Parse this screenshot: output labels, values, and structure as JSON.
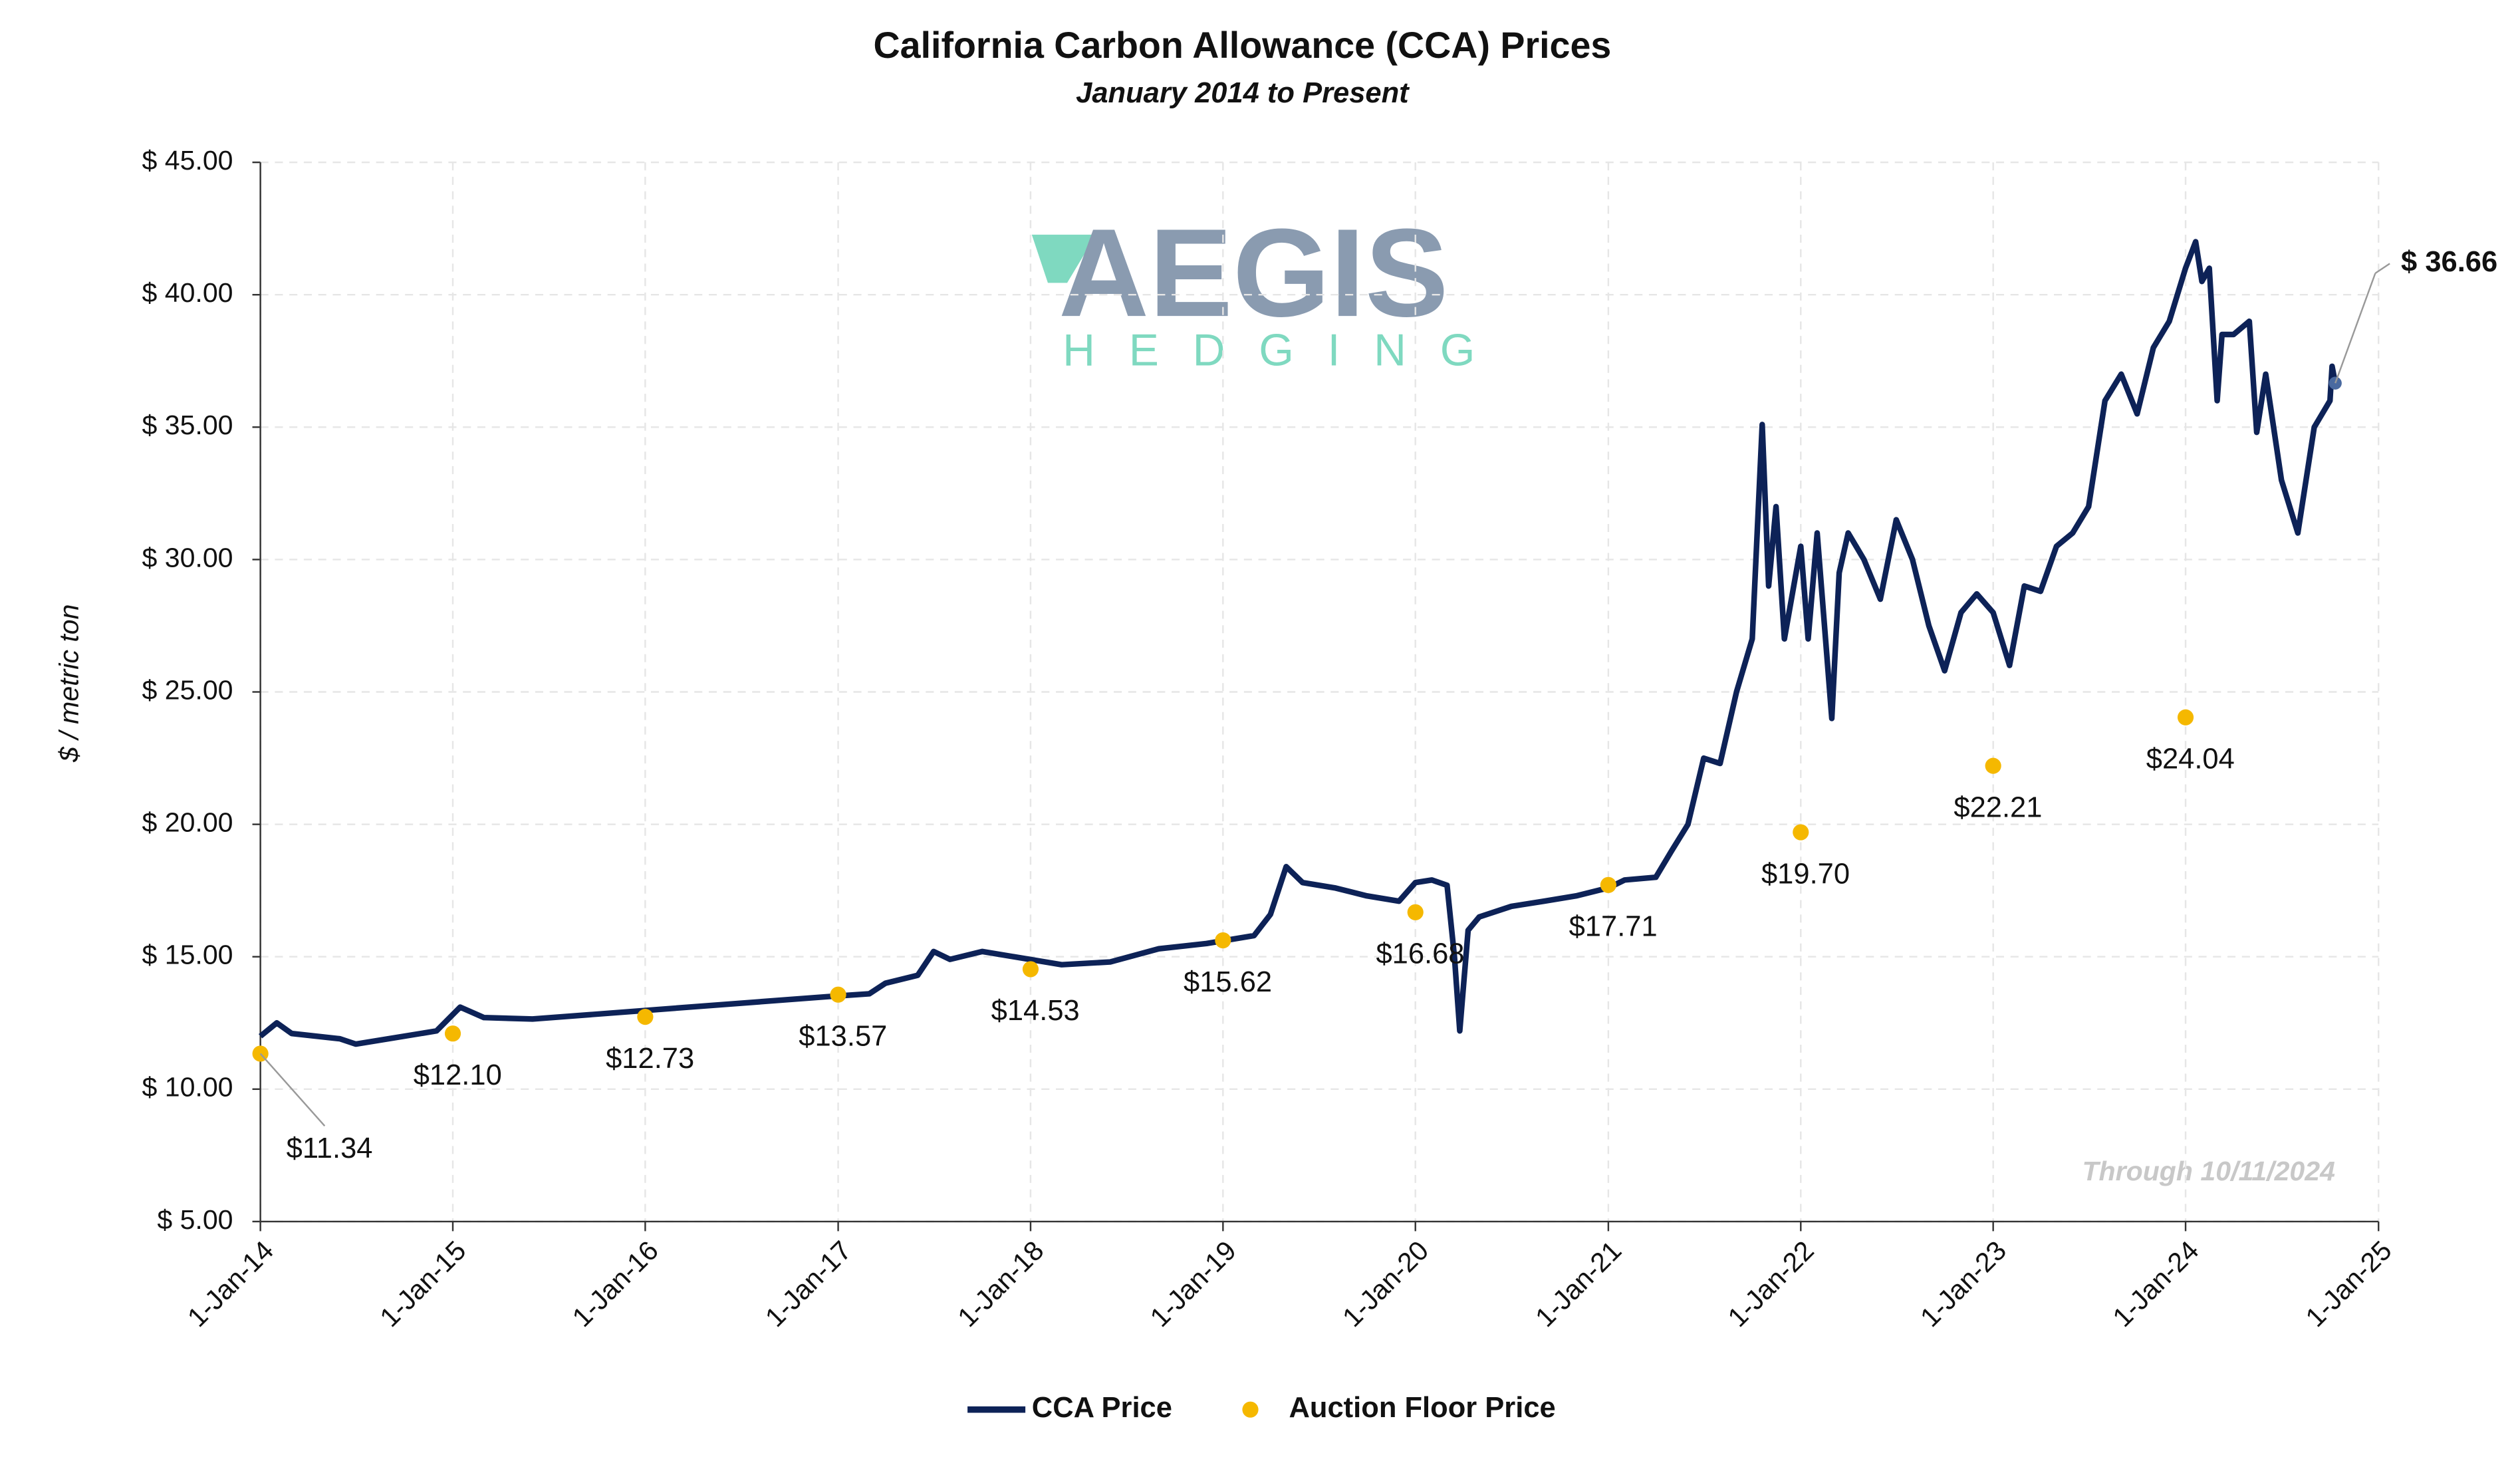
{
  "chart_data": {
    "type": "line",
    "title": "California Carbon Allowance (CCA) Prices",
    "subtitle": "January 2014 to Present",
    "y_label": "$ / metric ton",
    "watermark": [
      "AEGIS",
      "HEDGING"
    ],
    "annotation": "Through 10/11/2024",
    "end_label": {
      "value": 36.66,
      "label": "$ 36.66"
    },
    "xlim": [
      "2014-01-01",
      "2025-01-01"
    ],
    "xticks": [
      {
        "value": "2014-01-01",
        "label": "1-Jan-14"
      },
      {
        "value": "2015-01-01",
        "label": "1-Jan-15"
      },
      {
        "value": "2016-01-01",
        "label": "1-Jan-16"
      },
      {
        "value": "2017-01-01",
        "label": "1-Jan-17"
      },
      {
        "value": "2018-01-01",
        "label": "1-Jan-18"
      },
      {
        "value": "2019-01-01",
        "label": "1-Jan-19"
      },
      {
        "value": "2020-01-01",
        "label": "1-Jan-20"
      },
      {
        "value": "2021-01-01",
        "label": "1-Jan-21"
      },
      {
        "value": "2022-01-01",
        "label": "1-Jan-22"
      },
      {
        "value": "2023-01-01",
        "label": "1-Jan-23"
      },
      {
        "value": "2024-01-01",
        "label": "1-Jan-24"
      },
      {
        "value": "2025-01-01",
        "label": "1-Jan-25"
      }
    ],
    "ylim": [
      5,
      45
    ],
    "yticks": [
      {
        "value": 5,
        "label": "$ 5.00"
      },
      {
        "value": 10,
        "label": "$ 10.00"
      },
      {
        "value": 15,
        "label": "$ 15.00"
      },
      {
        "value": 20,
        "label": "$ 20.00"
      },
      {
        "value": 25,
        "label": "$ 25.00"
      },
      {
        "value": 30,
        "label": "$ 30.00"
      },
      {
        "value": 35,
        "label": "$ 35.00"
      },
      {
        "value": 40,
        "label": "$ 40.00"
      },
      {
        "value": 45,
        "label": "$ 45.00"
      }
    ],
    "grid": true,
    "series": [
      {
        "name": "CCA Price",
        "color": "#0d2257",
        "kind": "line",
        "x": [
          "2014-01-01",
          "2014-02-01",
          "2014-03-01",
          "2014-06-01",
          "2014-07-01",
          "2014-09-01",
          "2014-12-01",
          "2015-01-15",
          "2015-03-01",
          "2015-06-01",
          "2016-12-15",
          "2017-03-01",
          "2017-04-01",
          "2017-06-01",
          "2017-07-01",
          "2017-08-01",
          "2017-10-01",
          "2017-12-01",
          "2018-03-01",
          "2018-06-01",
          "2018-09-01",
          "2018-12-01",
          "2019-03-01",
          "2019-04-01",
          "2019-05-01",
          "2019-06-01",
          "2019-08-01",
          "2019-10-01",
          "2019-12-01",
          "2020-01-01",
          "2020-02-01",
          "2020-03-01",
          "2020-03-15",
          "2020-03-25",
          "2020-04-10",
          "2020-05-01",
          "2020-07-01",
          "2020-09-01",
          "2020-11-01",
          "2021-01-01",
          "2021-02-01",
          "2021-04-01",
          "2021-05-01",
          "2021-06-01",
          "2021-07-01",
          "2021-08-01",
          "2021-09-01",
          "2021-10-01",
          "2021-10-20",
          "2021-11-01",
          "2021-11-15",
          "2021-12-01",
          "2022-01-01",
          "2022-01-15",
          "2022-02-01",
          "2022-03-01",
          "2022-03-15",
          "2022-04-01",
          "2022-05-01",
          "2022-06-01",
          "2022-07-01",
          "2022-08-01",
          "2022-09-01",
          "2022-10-01",
          "2022-11-01",
          "2022-12-01",
          "2023-01-01",
          "2023-02-01",
          "2023-03-01",
          "2023-04-01",
          "2023-05-01",
          "2023-06-01",
          "2023-07-01",
          "2023-08-01",
          "2023-09-01",
          "2023-10-01",
          "2023-11-01",
          "2023-12-01",
          "2024-01-01",
          "2024-01-20",
          "2024-02-01",
          "2024-02-15",
          "2024-03-01",
          "2024-03-10",
          "2024-04-01",
          "2024-05-01",
          "2024-05-15",
          "2024-06-01",
          "2024-07-01",
          "2024-08-01",
          "2024-09-01",
          "2024-10-01",
          "2024-10-05",
          "2024-10-11"
        ],
        "values": [
          12.0,
          12.5,
          12.1,
          11.9,
          11.7,
          11.9,
          12.2,
          13.1,
          12.7,
          12.65,
          13.5,
          13.6,
          14.0,
          14.3,
          15.2,
          14.9,
          15.2,
          15.0,
          14.7,
          14.8,
          15.3,
          15.5,
          15.8,
          16.6,
          18.4,
          17.8,
          17.6,
          17.3,
          17.1,
          17.8,
          17.9,
          17.7,
          15.0,
          12.2,
          16.0,
          16.5,
          16.9,
          17.1,
          17.3,
          17.6,
          17.9,
          18.0,
          19.0,
          20.0,
          22.5,
          22.3,
          25.0,
          27.0,
          35.1,
          29.0,
          32.0,
          27.0,
          30.5,
          27.0,
          31.0,
          24.0,
          29.5,
          31.0,
          30.0,
          28.5,
          31.5,
          30.0,
          27.5,
          25.8,
          28.0,
          28.7,
          28.0,
          26.0,
          29.0,
          28.8,
          30.5,
          31.0,
          32.0,
          36.0,
          37.0,
          35.5,
          38.0,
          39.0,
          41.0,
          42.0,
          40.5,
          41.0,
          36.0,
          38.5,
          38.5,
          39.0,
          34.8,
          37.0,
          33.0,
          31.0,
          35.0,
          36.0,
          37.3,
          36.66
        ]
      },
      {
        "name": "Auction Floor Price",
        "color": "#f5b800",
        "kind": "scatter",
        "x": [
          "2014-01-01",
          "2015-01-01",
          "2016-01-01",
          "2017-01-01",
          "2018-01-01",
          "2019-01-01",
          "2020-01-01",
          "2021-01-01",
          "2022-01-01",
          "2023-01-01",
          "2024-01-01"
        ],
        "values": [
          11.34,
          12.1,
          12.73,
          13.57,
          14.53,
          15.62,
          16.68,
          17.71,
          19.7,
          22.21,
          24.04
        ],
        "value_labels": [
          "$11.34",
          "$12.10",
          "$12.73",
          "$13.57",
          "$14.53",
          "$15.62",
          "$16.68",
          "$17.71",
          "$19.70",
          "$22.21",
          "$24.04"
        ]
      }
    ]
  }
}
